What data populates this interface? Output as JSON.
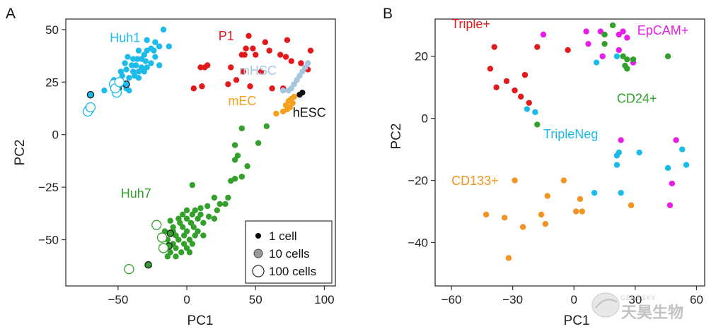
{
  "colors": {
    "Huh1": "#1cbbea",
    "Huh7": "#33a02c",
    "P1": "#e31a1c",
    "mHSC": "#a6c6e0",
    "mEC": "#f5a11e",
    "hESC": "#111111",
    "Triple+": "#e31a1c",
    "EpCAM+": "#e61ee6",
    "CD24+": "#33a02c",
    "TripleNeg": "#1cbbea",
    "CD133+": "#f39321"
  },
  "watermark": {
    "logo": "GENESKY",
    "text": "天昊生物",
    "icon": "genesky-logo-icon"
  },
  "chart_data": [
    {
      "panel_label": "A",
      "type": "scatter",
      "xlabel": "PC1",
      "ylabel": "PC2",
      "xlim": [
        -88,
        108
      ],
      "ylim": [
        -72,
        55
      ],
      "xticks": [
        -50,
        0,
        50,
        100
      ],
      "yticks": [
        50,
        25,
        0,
        -25,
        -50
      ],
      "grid": false,
      "legend": {
        "position": "bottom-right",
        "title": "",
        "entries": [
          {
            "label": "1 cell",
            "marker": "filled-black-small"
          },
          {
            "label": "10 cells",
            "marker": "filled-gray-medium"
          },
          {
            "label": "100 cells",
            "marker": "hollow-large"
          }
        ]
      },
      "group_labels": [
        {
          "text": "Huh1",
          "series": "Huh1",
          "x": -56,
          "y": 44
        },
        {
          "text": "P1",
          "series": "P1",
          "x": 23,
          "y": 45
        },
        {
          "text": "mHSC",
          "series": "mHSC",
          "x": 38,
          "y": 28.5
        },
        {
          "text": "mEC",
          "series": "mEC",
          "x": 30,
          "y": 14
        },
        {
          "text": "hESC",
          "series": "hESC",
          "x": 77,
          "y": 8.5
        },
        {
          "text": "Huh7",
          "series": "Huh7",
          "x": -48,
          "y": -30
        }
      ],
      "series": [
        {
          "name": "Huh1",
          "size": "1 cell",
          "points": [
            [
              -17,
              50
            ],
            [
              -29,
              45
            ],
            [
              -23,
              44
            ],
            [
              -20,
              42
            ],
            [
              -13,
              42
            ],
            [
              -26,
              41
            ],
            [
              -35,
              40
            ],
            [
              -29,
              40
            ],
            [
              -24,
              40
            ],
            [
              -31,
              38
            ],
            [
              -23,
              37
            ],
            [
              -43,
              37
            ],
            [
              -39,
              36
            ],
            [
              -36,
              36
            ],
            [
              -33,
              36
            ],
            [
              -30,
              35
            ],
            [
              -26,
              34
            ],
            [
              -20,
              33
            ],
            [
              -45,
              34
            ],
            [
              -40,
              33
            ],
            [
              -37,
              33
            ],
            [
              -33,
              32
            ],
            [
              -29,
              32
            ],
            [
              -48,
              30
            ],
            [
              -44,
              31
            ],
            [
              -39,
              30
            ],
            [
              -35,
              30
            ],
            [
              -31,
              30
            ],
            [
              -47,
              28
            ],
            [
              -42,
              27
            ],
            [
              -38,
              28
            ],
            [
              -35,
              27
            ],
            [
              -50,
              25
            ],
            [
              -46,
              24
            ],
            [
              -44,
              22
            ],
            [
              -42,
              21
            ],
            [
              -60,
              21
            ],
            [
              -53,
              26
            ]
          ]
        },
        {
          "name": "Huh1",
          "size": "10 cells",
          "points": [
            [
              -70,
              19
            ],
            [
              -44,
              24
            ],
            [
              -50,
              22
            ]
          ]
        },
        {
          "name": "Huh1",
          "size": "100 cells",
          "points": [
            [
              -71,
              12
            ],
            [
              -72,
              11
            ],
            [
              -70,
              13
            ],
            [
              -53,
              24
            ],
            [
              -51,
              20
            ],
            [
              -52,
              22
            ],
            [
              -49,
              25
            ]
          ]
        },
        {
          "name": "P1",
          "size": "1 cell",
          "points": [
            [
              45,
              47
            ],
            [
              57,
              44
            ],
            [
              73,
              45
            ],
            [
              43,
              41
            ],
            [
              48,
              41
            ],
            [
              40,
              38
            ],
            [
              42,
              38
            ],
            [
              50,
              38
            ],
            [
              60,
              40
            ],
            [
              68,
              38
            ],
            [
              90,
              40
            ],
            [
              72,
              37
            ],
            [
              76,
              35
            ],
            [
              83,
              34
            ],
            [
              88,
              31
            ],
            [
              15,
              33
            ],
            [
              13,
              32
            ],
            [
              10,
              32
            ],
            [
              32,
              32
            ],
            [
              41,
              30
            ],
            [
              54,
              30
            ],
            [
              36,
              26
            ],
            [
              70,
              22
            ],
            [
              11,
              23
            ],
            [
              5,
              22
            ],
            [
              30,
              24
            ],
            [
              46,
              23
            ],
            [
              62,
              22
            ]
          ]
        },
        {
          "name": "mHSC",
          "size": "1 cell",
          "points": [
            [
              88,
              34
            ],
            [
              86,
              32
            ],
            [
              84,
              30
            ],
            [
              82,
              28
            ],
            [
              80,
              26
            ],
            [
              78,
              24
            ],
            [
              76,
              22
            ],
            [
              74,
              21
            ],
            [
              70,
              21
            ]
          ]
        },
        {
          "name": "mEC",
          "size": "1 cell",
          "points": [
            [
              78,
              18
            ],
            [
              76,
              17
            ],
            [
              74,
              16
            ],
            [
              77,
              15
            ],
            [
              72,
              14
            ],
            [
              75,
              13
            ],
            [
              73,
              12
            ],
            [
              70,
              11
            ],
            [
              65,
              10
            ]
          ]
        },
        {
          "name": "hESC",
          "size": "1 cell",
          "points": [
            [
              84,
              20
            ],
            [
              82,
              19
            ]
          ]
        },
        {
          "name": "Huh7",
          "size": "1 cell",
          "points": [
            [
              58,
              4
            ],
            [
              40,
              3
            ],
            [
              52,
              -4
            ],
            [
              35,
              -5
            ],
            [
              37,
              -10
            ],
            [
              44,
              -15
            ],
            [
              35,
              -12
            ],
            [
              40,
              -20
            ],
            [
              35,
              -21
            ],
            [
              32,
              -22
            ],
            [
              4,
              -24
            ],
            [
              30,
              -30
            ],
            [
              20,
              -30
            ],
            [
              24,
              -33
            ],
            [
              28,
              -33
            ],
            [
              15,
              -34
            ],
            [
              10,
              -35
            ],
            [
              22,
              -36
            ],
            [
              6,
              -36
            ],
            [
              0,
              -36
            ],
            [
              -3,
              -38
            ],
            [
              4,
              -38
            ],
            [
              10,
              -38
            ],
            [
              16,
              -39
            ],
            [
              -6,
              -40
            ],
            [
              0,
              -40
            ],
            [
              8,
              -40
            ],
            [
              20,
              -40
            ],
            [
              -12,
              -41
            ],
            [
              -5,
              -42
            ],
            [
              3,
              -42
            ],
            [
              12,
              -42
            ],
            [
              -10,
              -44
            ],
            [
              -3,
              -44
            ],
            [
              5,
              -44
            ],
            [
              -16,
              -46
            ],
            [
              -10,
              -46
            ],
            [
              0,
              -46
            ],
            [
              8,
              -46
            ],
            [
              -8,
              -48
            ],
            [
              -2,
              -48
            ],
            [
              6,
              -48
            ],
            [
              12,
              -48
            ],
            [
              -14,
              -50
            ],
            [
              -6,
              -50
            ],
            [
              2,
              -50
            ],
            [
              -10,
              -52
            ],
            [
              -2,
              -52
            ],
            [
              4,
              -52
            ],
            [
              -16,
              -54
            ],
            [
              -8,
              -54
            ],
            [
              0,
              -54
            ],
            [
              -12,
              -56
            ],
            [
              -4,
              -56
            ],
            [
              2,
              -56
            ],
            [
              -8,
              -58
            ],
            [
              -14,
              -58
            ]
          ]
        },
        {
          "name": "Huh7",
          "size": "10 cells",
          "points": [
            [
              -28,
              -62
            ],
            [
              -12,
              -47
            ],
            [
              -13,
              -53
            ]
          ]
        },
        {
          "name": "Huh7",
          "size": "100 cells",
          "points": [
            [
              -42,
              -64
            ],
            [
              -22,
              -43
            ],
            [
              -18,
              -49
            ],
            [
              -17,
              -54
            ]
          ]
        }
      ]
    },
    {
      "panel_label": "B",
      "type": "scatter",
      "xlabel": "PC1",
      "ylabel": "PC2",
      "xlim": [
        -68,
        64
      ],
      "ylim": [
        -54,
        32
      ],
      "xticks": [
        -60,
        -30,
        0,
        30,
        60
      ],
      "yticks": [
        20,
        0,
        -20,
        -40
      ],
      "grid": false,
      "group_labels": [
        {
          "text": "Triple+",
          "series": "Triple+",
          "x": -60,
          "y": 29
        },
        {
          "text": "EpCAM+",
          "series": "EpCAM+",
          "x": 31,
          "y": 27
        },
        {
          "text": "CD24+",
          "series": "CD24+",
          "x": 21,
          "y": 5
        },
        {
          "text": "TripleNeg",
          "series": "TripleNeg",
          "x": -15,
          "y": -6.5
        },
        {
          "text": "CD133+",
          "series": "CD133+",
          "x": -60,
          "y": -21.5
        }
      ],
      "series": [
        {
          "name": "Triple+",
          "points": [
            [
              -41,
              16
            ],
            [
              -39,
              23
            ],
            [
              -38,
              10
            ],
            [
              -33,
              12
            ],
            [
              -29,
              9
            ],
            [
              -26,
              7
            ],
            [
              -24,
              14
            ],
            [
              -22,
              5
            ],
            [
              -18,
              23
            ],
            [
              -3,
              22
            ]
          ]
        },
        {
          "name": "EpCAM+",
          "points": [
            [
              -15,
              27
            ],
            [
              6,
              28
            ],
            [
              13,
              28
            ],
            [
              22,
              27
            ],
            [
              24,
              28
            ],
            [
              26,
              26
            ],
            [
              7,
              24
            ],
            [
              22,
              22
            ],
            [
              14,
              20
            ],
            [
              29,
              18
            ],
            [
              23,
              -7
            ],
            [
              50,
              -7
            ],
            [
              48,
              -21
            ],
            [
              47,
              -28
            ]
          ]
        },
        {
          "name": "CD24+",
          "points": [
            [
              19,
              30
            ],
            [
              15,
              27
            ],
            [
              15,
              24
            ],
            [
              24,
              20
            ],
            [
              26,
              19
            ],
            [
              29,
              19
            ],
            [
              25,
              17
            ],
            [
              26,
              16
            ],
            [
              46,
              20
            ],
            [
              -18,
              -2
            ]
          ]
        },
        {
          "name": "TripleNeg",
          "points": [
            [
              21,
              20
            ],
            [
              11,
              18
            ],
            [
              -23,
              3
            ],
            [
              -19,
              2
            ],
            [
              22,
              -11
            ],
            [
              21,
              -12
            ],
            [
              32,
              -11
            ],
            [
              21,
              -15
            ],
            [
              53,
              -10
            ],
            [
              55,
              -15
            ],
            [
              46,
              -16
            ],
            [
              10,
              -24
            ],
            [
              23,
              -24
            ]
          ]
        },
        {
          "name": "CD133+",
          "points": [
            [
              -29,
              -20
            ],
            [
              -5,
              -20
            ],
            [
              -13,
              -25
            ],
            [
              3,
              -26
            ],
            [
              28,
              -28
            ],
            [
              -43,
              -31
            ],
            [
              -16,
              -31
            ],
            [
              1,
              -30
            ],
            [
              4,
              -30
            ],
            [
              -34,
              -32
            ],
            [
              -14,
              -34
            ],
            [
              -25,
              -35
            ],
            [
              -32,
              -45
            ]
          ]
        }
      ]
    }
  ]
}
